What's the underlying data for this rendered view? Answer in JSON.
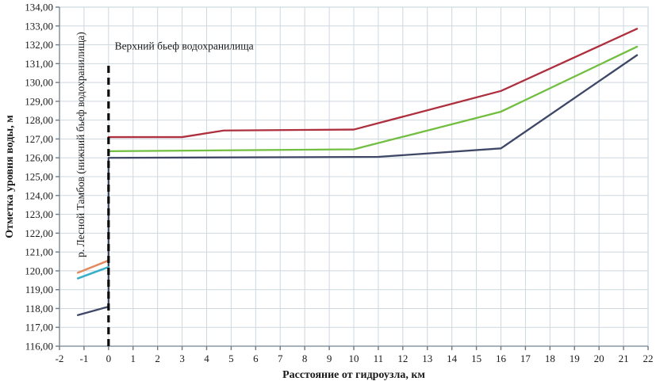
{
  "page": {
    "background": "#ffffff"
  },
  "chart_data": {
    "type": "line",
    "title": "",
    "xlabel": "Расстояние от гидроузла, км",
    "ylabel": "Отметка уровня воды, м",
    "xlim": [
      -2,
      22
    ],
    "ylim": [
      116,
      134
    ],
    "x_tick_step": 1,
    "y_tick_step": 1,
    "y_tick_decimals": 2,
    "y_tick_decimal_separator": ",",
    "grid": true,
    "legend_position": "none",
    "grid_color": "#cdd8e0",
    "axis_color": "#8e99a3",
    "tick_color": "#6f7a84",
    "series": [
      {
        "name": "red-line",
        "color": "#ae2f3e",
        "width": 2.3,
        "points": [
          [
            0,
            127.1
          ],
          [
            3,
            127.1
          ],
          [
            4.7,
            127.45
          ],
          [
            10,
            127.5
          ],
          [
            16,
            129.55
          ],
          [
            21.55,
            132.85
          ]
        ]
      },
      {
        "name": "green-line",
        "color": "#72be40",
        "width": 2.3,
        "points": [
          [
            0,
            126.35
          ],
          [
            10,
            126.45
          ],
          [
            16,
            128.45
          ],
          [
            21.55,
            131.9
          ]
        ]
      },
      {
        "name": "dark-blue-line",
        "color": "#3e4866",
        "width": 2.3,
        "points": [
          [
            -1.25,
            117.65
          ],
          [
            0,
            118.1
          ],
          [
            0,
            126.0
          ],
          [
            11,
            126.05
          ],
          [
            16,
            126.5
          ],
          [
            21.55,
            131.45
          ]
        ]
      },
      {
        "name": "orange-line",
        "color": "#e18a5f",
        "width": 2.5,
        "points": [
          [
            -1.25,
            119.9
          ],
          [
            0,
            120.55
          ]
        ]
      },
      {
        "name": "cyan-line",
        "color": "#36aec8",
        "width": 2.5,
        "points": [
          [
            -1.25,
            119.6
          ],
          [
            0,
            120.2
          ]
        ]
      }
    ],
    "dam_axis_line": {
      "x": 0,
      "y_from": 116,
      "y_to": 131.0,
      "style": "dashed",
      "color": "#0a0a0a"
    },
    "annotations": [
      {
        "id": "upper-pool-label",
        "text": "Верхний бьеф водохранилища",
        "x": 0.25,
        "y": 131.75,
        "rotate": 0,
        "anchor": "start"
      },
      {
        "id": "river-label",
        "text": "р. Лесной Тамбов (нижний бьеф водохранилища)",
        "x": -1.0,
        "y": 126.7,
        "rotate": -90,
        "anchor": "middle"
      }
    ]
  }
}
